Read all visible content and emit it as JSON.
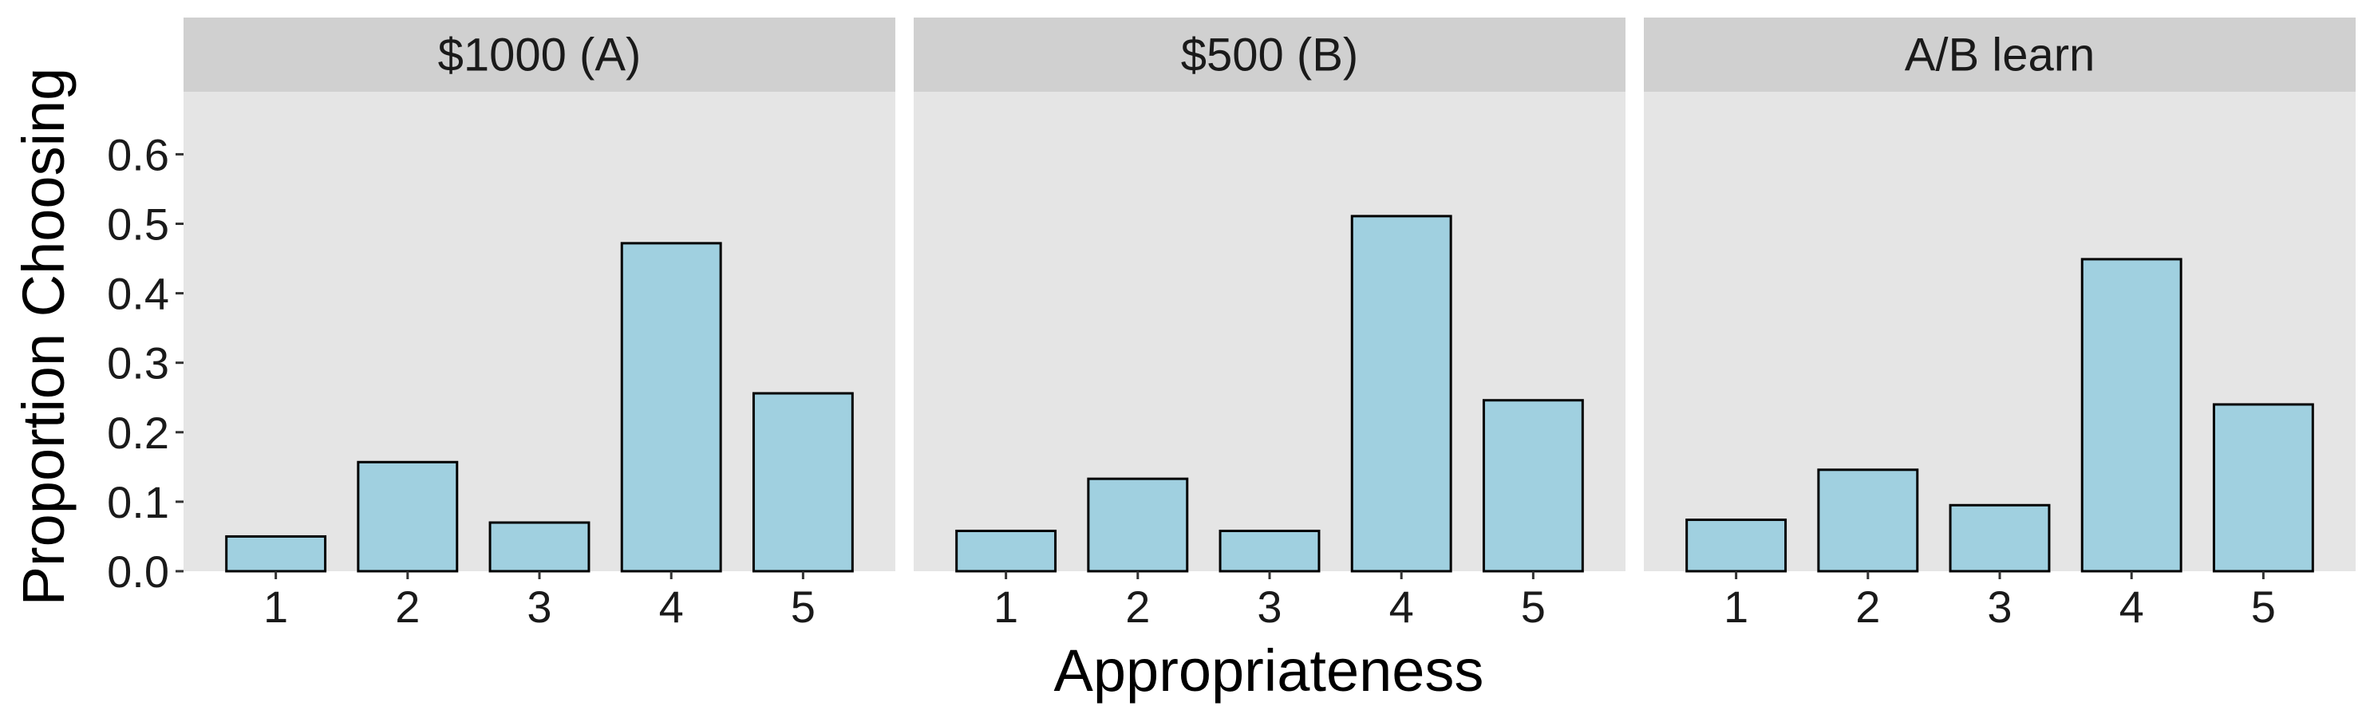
{
  "chart_data": {
    "type": "bar",
    "facets": [
      "$1000 (A)",
      "$500 (B)",
      "A/B learn"
    ],
    "categories": [
      "1",
      "2",
      "3",
      "4",
      "5"
    ],
    "series": [
      {
        "facet": "$1000 (A)",
        "values": [
          0.05,
          0.157,
          0.07,
          0.472,
          0.256
        ]
      },
      {
        "facet": "$500 (B)",
        "values": [
          0.058,
          0.133,
          0.058,
          0.511,
          0.246
        ]
      },
      {
        "facet": "A/B learn",
        "values": [
          0.074,
          0.146,
          0.095,
          0.449,
          0.24
        ]
      }
    ],
    "xlabel": "Appropriateness",
    "ylabel": "Proportion Choosing",
    "ylim": [
      0,
      0.69
    ],
    "yticks": [
      0.0,
      0.1,
      0.2,
      0.3,
      0.4,
      0.5,
      0.6
    ],
    "ytick_labels": [
      "0.0",
      "0.1",
      "0.2",
      "0.3",
      "0.4",
      "0.5",
      "0.6"
    ],
    "grid": false,
    "colors": {
      "bar_fill": "#a0d0e0",
      "bar_stroke": "#000000",
      "panel_background": "#e5e5e5",
      "strip_background": "#d0d0d0"
    }
  }
}
